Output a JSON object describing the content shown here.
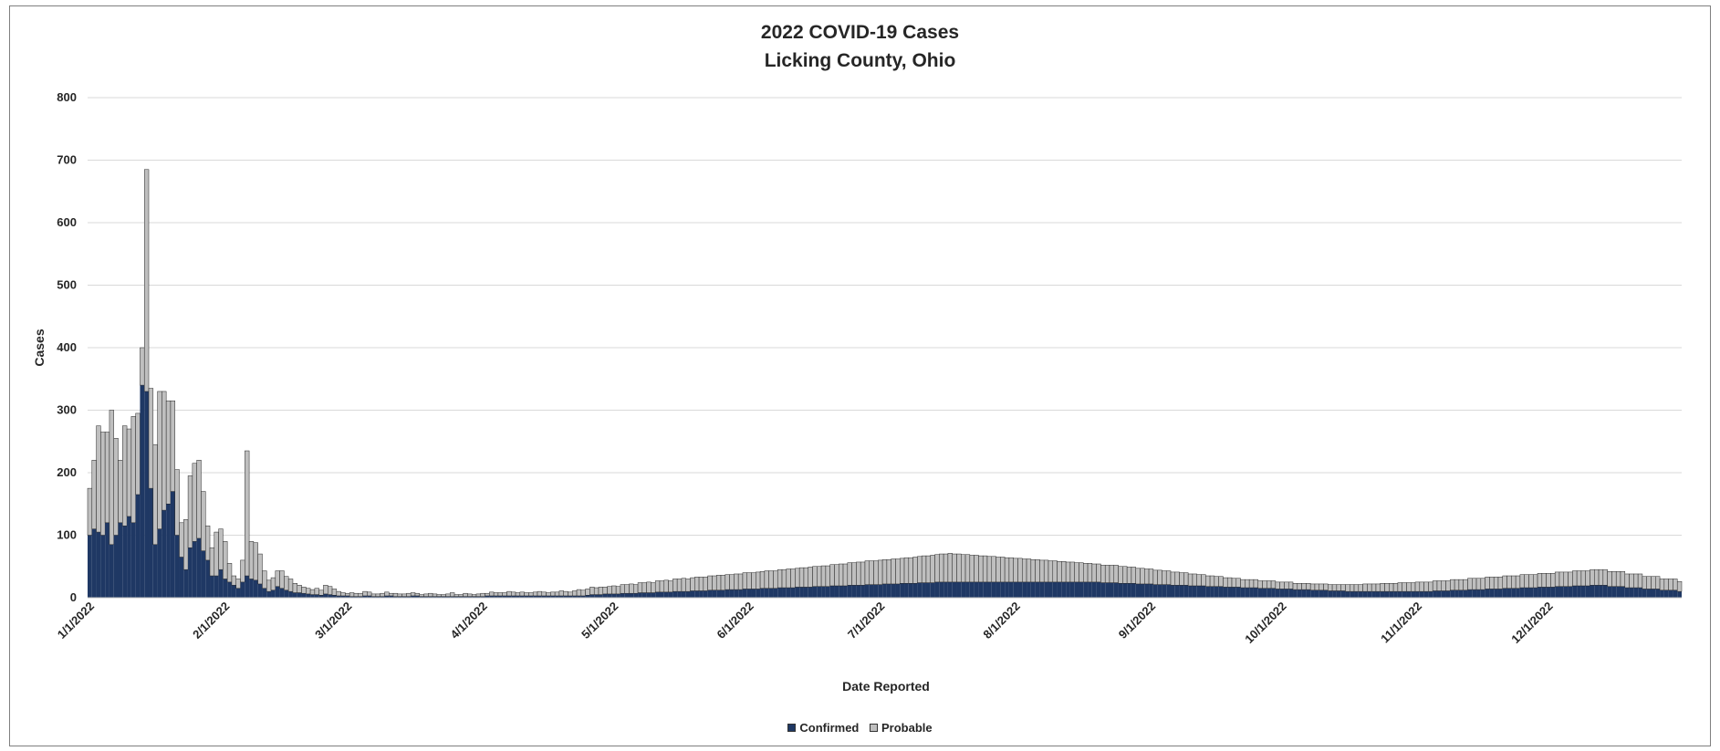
{
  "chart_data": {
    "type": "bar",
    "stacked": true,
    "title": "2022 COVID-19 Cases",
    "subtitle": "Licking County, Ohio",
    "xlabel": "Date Reported",
    "ylabel": "Cases",
    "ylim": [
      0,
      800
    ],
    "yticks": [
      0,
      100,
      200,
      300,
      400,
      500,
      600,
      700,
      800
    ],
    "x_range": [
      "1/1/2022",
      "12/31/2022"
    ],
    "xtick_labels": [
      "1/1/2022",
      "2/1/2022",
      "3/1/2022",
      "4/1/2022",
      "5/1/2022",
      "6/1/2022",
      "7/1/2022",
      "8/1/2022",
      "9/1/2022",
      "10/1/2022",
      "11/1/2022",
      "12/1/2022"
    ],
    "grid": true,
    "legend_position": "bottom",
    "colors": {
      "confirmed": "#1f3864",
      "probable": "#bfbfbf",
      "bar_edge": "#262626"
    },
    "series": [
      {
        "name": "Confirmed",
        "key": "confirmed",
        "values": [
          100,
          110,
          105,
          100,
          120,
          85,
          100,
          120,
          115,
          130,
          120,
          165,
          340,
          330,
          175,
          85,
          110,
          140,
          150,
          170,
          100,
          65,
          45,
          80,
          90,
          95,
          75,
          60,
          35,
          35,
          45,
          30,
          25,
          20,
          15,
          25,
          35,
          30,
          28,
          22,
          15,
          10,
          12,
          18,
          15,
          12,
          10,
          8,
          8,
          7,
          6,
          5,
          5,
          4,
          6,
          5,
          4,
          3,
          3,
          3,
          2,
          2,
          2,
          3,
          3,
          2,
          2,
          2,
          3,
          3,
          2,
          2,
          2,
          2,
          3,
          3,
          2,
          2,
          2,
          2,
          2,
          2,
          2,
          2,
          2,
          2,
          2,
          2,
          2,
          2,
          2,
          3,
          3,
          3,
          3,
          3,
          3,
          3,
          3,
          3,
          3,
          3,
          3,
          3,
          3,
          3,
          3,
          3,
          3,
          3,
          3,
          3,
          3,
          3,
          4,
          5,
          5,
          5,
          6,
          6,
          6,
          6,
          7,
          7,
          7,
          7,
          8,
          8,
          8,
          8,
          9,
          9,
          9,
          9,
          10,
          10,
          10,
          10,
          11,
          11,
          11,
          11,
          12,
          12,
          12,
          12,
          13,
          13,
          13,
          13,
          14,
          14,
          14,
          14,
          15,
          15,
          15,
          15,
          16,
          16,
          16,
          16,
          17,
          17,
          17,
          17,
          18,
          18,
          18,
          18,
          19,
          19,
          19,
          19,
          20,
          20,
          20,
          20,
          21,
          21,
          21,
          21,
          22,
          22,
          22,
          22,
          23,
          23,
          23,
          23,
          24,
          24,
          24,
          24,
          25,
          25,
          25,
          25,
          25,
          25,
          25,
          25,
          25,
          25,
          25,
          25,
          25,
          25,
          25,
          25,
          25,
          25,
          25,
          25,
          25,
          25,
          25,
          25,
          25,
          25,
          25,
          25,
          25,
          25,
          25,
          25,
          25,
          25,
          25,
          25,
          25,
          25,
          24,
          24,
          24,
          24,
          23,
          23,
          23,
          23,
          22,
          22,
          22,
          22,
          21,
          21,
          21,
          21,
          20,
          20,
          20,
          20,
          19,
          19,
          19,
          19,
          18,
          18,
          18,
          18,
          17,
          17,
          17,
          17,
          16,
          16,
          16,
          16,
          15,
          15,
          15,
          15,
          14,
          14,
          14,
          14,
          13,
          13,
          13,
          13,
          12,
          12,
          12,
          12,
          11,
          11,
          11,
          11,
          10,
          10,
          10,
          10,
          10,
          10,
          10,
          10,
          10,
          10,
          10,
          10,
          10,
          10,
          10,
          10,
          10,
          10,
          10,
          10,
          11,
          11,
          11,
          11,
          12,
          12,
          12,
          12,
          13,
          13,
          13,
          13,
          14,
          14,
          14,
          14,
          15,
          15,
          15,
          15,
          16,
          16,
          16,
          16,
          17,
          17,
          17,
          17,
          18,
          18,
          18,
          18,
          19,
          19,
          19,
          19,
          20,
          20,
          20,
          20,
          18,
          18,
          18,
          18,
          16,
          16,
          16,
          16,
          14,
          14,
          14,
          14,
          12,
          12,
          12,
          12,
          10,
          10,
          10,
          10,
          10,
          10,
          10,
          10,
          10,
          10,
          10,
          10,
          10
        ]
      },
      {
        "name": "Probable",
        "key": "probable",
        "values": [
          75,
          110,
          170,
          165,
          145,
          215,
          155,
          100,
          160,
          140,
          170,
          130,
          60,
          355,
          160,
          160,
          220,
          190,
          165,
          145,
          105,
          55,
          80,
          115,
          125,
          125,
          95,
          55,
          45,
          70,
          65,
          60,
          30,
          15,
          15,
          35,
          200,
          60,
          60,
          48,
          28,
          18,
          20,
          25,
          28,
          22,
          20,
          15,
          12,
          10,
          9,
          8,
          10,
          8,
          14,
          13,
          10,
          7,
          5,
          4,
          6,
          5,
          5,
          7,
          6,
          4,
          4,
          5,
          6,
          4,
          5,
          4,
          4,
          5,
          5,
          4,
          3,
          4,
          5,
          4,
          3,
          3,
          4,
          6,
          3,
          3,
          5,
          4,
          3,
          4,
          5,
          4,
          6,
          5,
          5,
          5,
          7,
          6,
          5,
          6,
          5,
          5,
          6,
          7,
          6,
          5,
          6,
          6,
          8,
          7,
          6,
          8,
          10,
          9,
          10,
          12,
          11,
          12,
          11,
          12,
          13,
          12,
          14,
          14,
          15,
          14,
          16,
          16,
          17,
          16,
          18,
          18,
          19,
          18,
          20,
          20,
          21,
          20,
          21,
          22,
          22,
          22,
          23,
          23,
          24,
          24,
          24,
          24,
          25,
          25,
          26,
          26,
          26,
          27,
          27,
          28,
          28,
          28,
          29,
          29,
          30,
          30,
          30,
          31,
          31,
          32,
          32,
          32,
          33,
          33,
          34,
          34,
          35,
          35,
          36,
          36,
          37,
          37,
          38,
          38,
          38,
          39,
          39,
          39,
          40,
          40,
          40,
          41,
          41,
          42,
          42,
          43,
          43,
          44,
          44,
          45,
          45,
          46,
          45,
          45,
          44,
          44,
          43,
          43,
          42,
          42,
          41,
          41,
          40,
          40,
          39,
          39,
          38,
          38,
          37,
          37,
          36,
          36,
          35,
          35,
          34,
          34,
          33,
          33,
          32,
          32,
          31,
          31,
          30,
          30,
          29,
          29,
          28,
          28,
          28,
          28,
          27,
          27,
          26,
          26,
          25,
          25,
          24,
          24,
          23,
          23,
          22,
          22,
          21,
          21,
          20,
          20,
          19,
          19,
          18,
          18,
          17,
          17,
          16,
          16,
          15,
          15,
          14,
          14,
          13,
          13,
          13,
          13,
          12,
          12,
          12,
          12,
          11,
          11,
          11,
          11,
          10,
          10,
          10,
          10,
          10,
          10,
          10,
          10,
          10,
          10,
          10,
          10,
          11,
          11,
          11,
          11,
          12,
          12,
          12,
          12,
          13,
          13,
          13,
          13,
          14,
          14,
          14,
          14,
          15,
          15,
          15,
          15,
          16,
          16,
          16,
          16,
          17,
          17,
          17,
          17,
          18,
          18,
          18,
          18,
          19,
          19,
          19,
          19,
          20,
          20,
          20,
          20,
          21,
          21,
          21,
          21,
          22,
          22,
          22,
          22,
          23,
          23,
          23,
          23,
          24,
          24,
          24,
          24,
          25,
          25,
          25,
          25,
          24,
          24,
          24,
          24,
          22,
          22,
          22,
          22,
          20,
          20,
          20,
          20,
          18,
          18,
          18,
          18,
          16,
          16,
          16,
          16,
          14,
          14,
          14,
          14,
          12,
          12,
          12,
          12,
          10,
          10,
          10,
          10,
          8
        ]
      }
    ]
  }
}
